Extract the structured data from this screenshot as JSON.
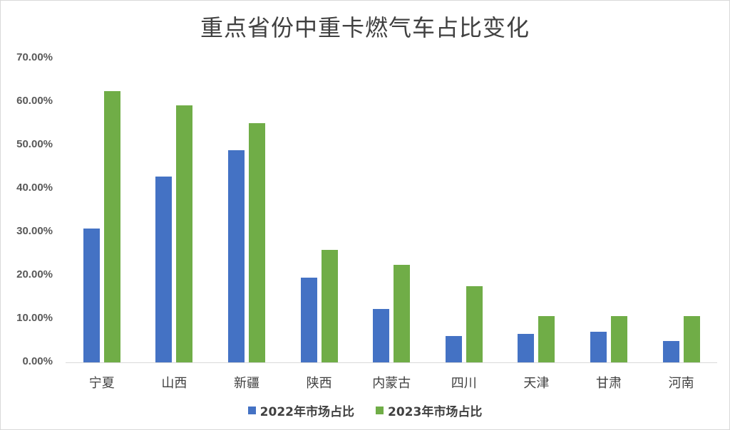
{
  "chart_data": {
    "type": "bar",
    "title": "重点省份中重卡燃气车占比变化",
    "xlabel": "",
    "ylabel": "",
    "categories": [
      "宁夏",
      "山西",
      "新疆",
      "陕西",
      "内蒙古",
      "四川",
      "天津",
      "甘肃",
      "河南"
    ],
    "series": [
      {
        "name": "2022年市场占比",
        "color": "#4472c4",
        "values": [
          30.8,
          42.8,
          48.9,
          19.5,
          12.3,
          6.1,
          6.6,
          7.0,
          4.9
        ]
      },
      {
        "name": "2023年市场占比",
        "color": "#70ad47",
        "values": [
          62.4,
          59.2,
          55.1,
          25.9,
          22.5,
          17.5,
          10.7,
          10.7,
          10.7
        ]
      }
    ],
    "ylim": [
      0,
      70
    ],
    "yticks": [
      "0.00%",
      "10.00%",
      "20.00%",
      "30.00%",
      "40.00%",
      "50.00%",
      "60.00%",
      "70.00%"
    ],
    "grid": false,
    "legend_position": "bottom"
  }
}
